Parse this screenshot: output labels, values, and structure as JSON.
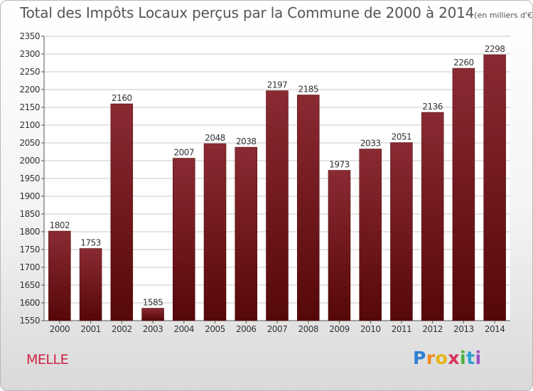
{
  "header": {
    "title": "Total des Impôts Locaux perçus par la Commune de 2000 à 2014",
    "unit": "(en milliers d'€)"
  },
  "footer": {
    "city": "MELLE",
    "logo_letters": [
      "P",
      "r",
      "o",
      "x",
      "i",
      "t",
      "i"
    ]
  },
  "colors": {
    "bar_top": "#8a2a32",
    "bar_bottom": "#560808",
    "grid": "#c8c8c8",
    "text": "#333333"
  },
  "chart_data": {
    "type": "bar",
    "title": "Total des Impôts Locaux perçus par la Commune de 2000 à 2014",
    "xlabel": "",
    "ylabel": "",
    "categories": [
      "2000",
      "2001",
      "2002",
      "2003",
      "2004",
      "2005",
      "2006",
      "2007",
      "2008",
      "2009",
      "2010",
      "2011",
      "2012",
      "2013",
      "2014"
    ],
    "values": [
      1802,
      1753,
      2160,
      1585,
      2007,
      2048,
      2038,
      2197,
      2185,
      1973,
      2033,
      2051,
      2136,
      2260,
      2298
    ],
    "ylim": [
      1550,
      2350
    ],
    "yticks": [
      1550,
      1600,
      1650,
      1700,
      1750,
      1800,
      1850,
      1900,
      1950,
      2000,
      2050,
      2100,
      2150,
      2200,
      2250,
      2300,
      2350
    ],
    "grid": true,
    "legend": "none"
  }
}
